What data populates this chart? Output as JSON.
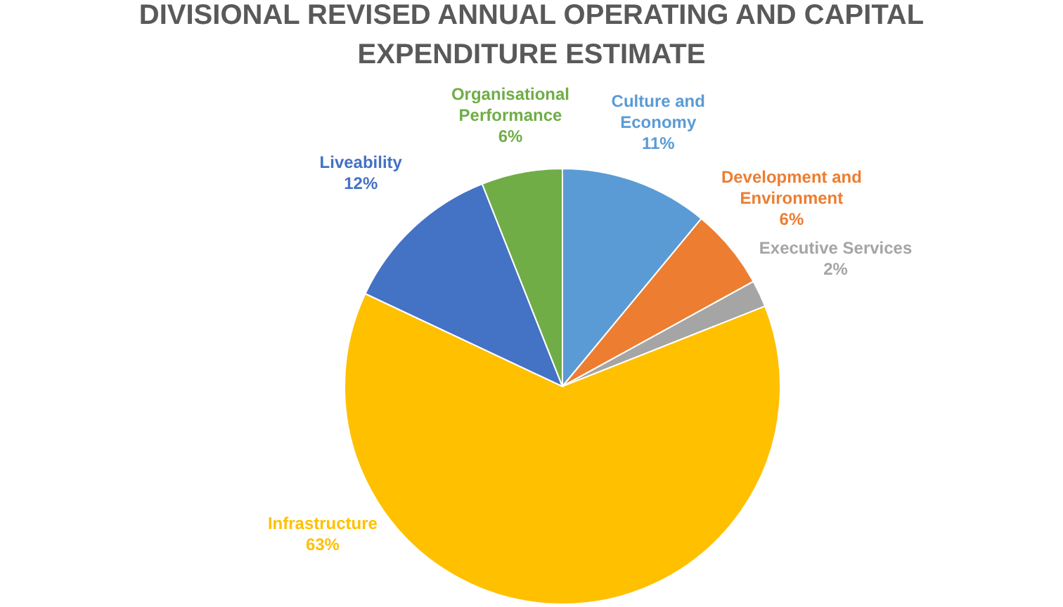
{
  "chart_data": {
    "type": "pie",
    "title": "DIVISIONAL REVISED ANNUAL OPERATING AND CAPITAL EXPENDITURE ESTIMATE",
    "categories": [
      "Culture and Economy",
      "Development and Environment",
      "Executive Services",
      "Infrastructure",
      "Liveability",
      "Organisational Performance"
    ],
    "values": [
      11,
      6,
      2,
      63,
      12,
      6
    ],
    "value_labels": [
      "11%",
      "6%",
      "2%",
      "63%",
      "12%",
      "6%"
    ],
    "colors": [
      "#5b9bd5",
      "#ed7d31",
      "#a5a5a5",
      "#ffc000",
      "#4472c4",
      "#70ad47"
    ]
  }
}
